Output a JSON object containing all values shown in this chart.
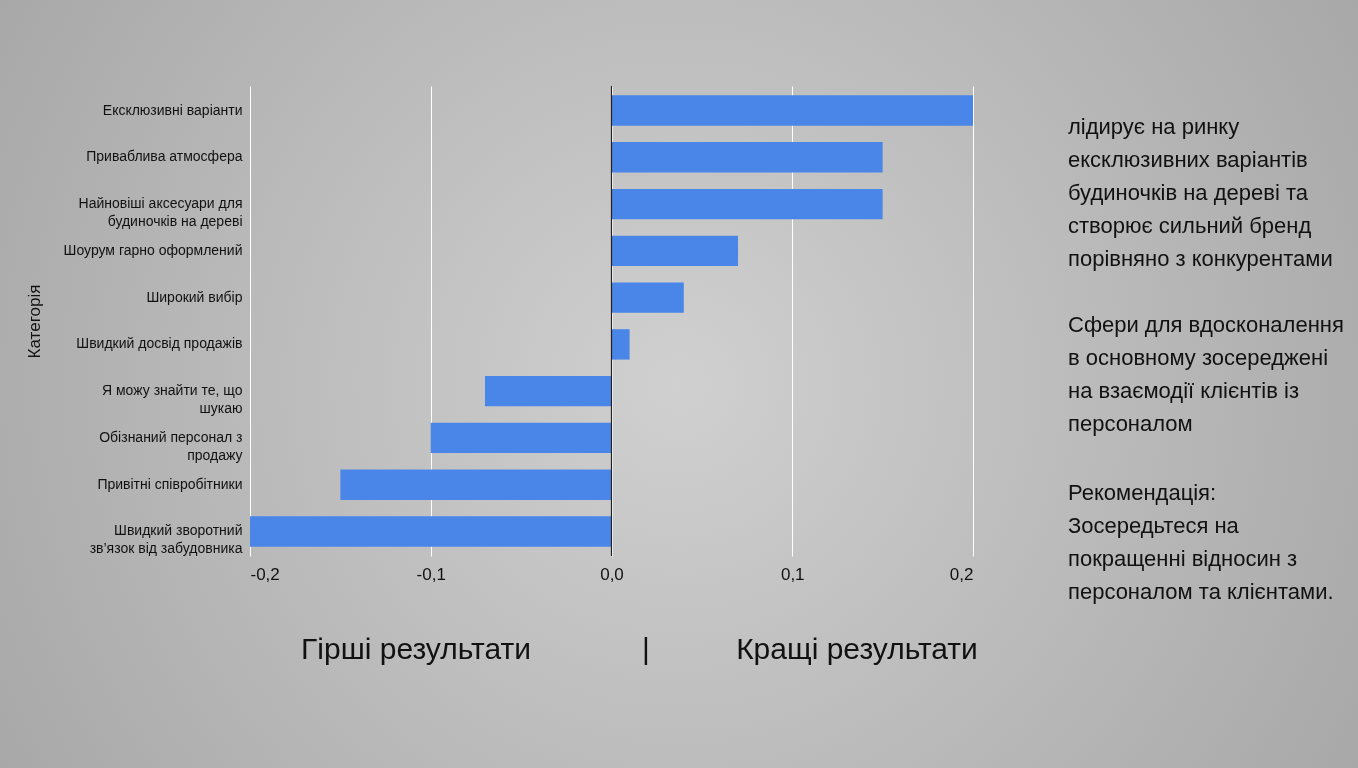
{
  "chart_data": {
    "type": "bar",
    "orientation": "horizontal",
    "ylabel": "Категорія",
    "categories": [
      "Ексклюзивні варіанти",
      "Приваблива атмосфера",
      "Найновіші аксесуари для будиночків на дереві",
      "Шоурум гарно оформлений",
      "Широкий вибір",
      "Швидкий досвід продажів",
      "Я можу знайти те, що шукаю",
      "Обізнаний персонал з продажу",
      "Привітні співробітники",
      "Швидкий зворотний зв’язок від забудовника"
    ],
    "values": [
      0.2,
      0.15,
      0.15,
      0.07,
      0.04,
      0.01,
      -0.07,
      -0.1,
      -0.15,
      -0.2
    ],
    "color": "#4a86e8",
    "xlim": [
      -0.2,
      0.2
    ],
    "xticks": [
      {
        "value": -0.2,
        "label": "-0,2"
      },
      {
        "value": -0.1,
        "label": "-0,1"
      },
      {
        "value": 0,
        "label": "0,0"
      },
      {
        "value": 0.1,
        "label": "0,1"
      },
      {
        "value": 0.2,
        "label": "0,2"
      }
    ],
    "grid": "x",
    "ref_lines": [
      {
        "axis": "x",
        "value": 0,
        "color": "#222222"
      }
    ],
    "annotations": [
      "лідирує на ринку ексклюзивних варіантів будиночків на дереві та створює сильний бренд порівняно з конкурентами",
      "Сфери для вдосконалення в основному зосереджені на взаємодії клієнтів із персоналом",
      "Рекомендація:",
      "Зосередьтеся на покращенні відносин з персоналом та клієнтами.",
      "Гірші результати",
      "|",
      "Кращі результати"
    ]
  }
}
